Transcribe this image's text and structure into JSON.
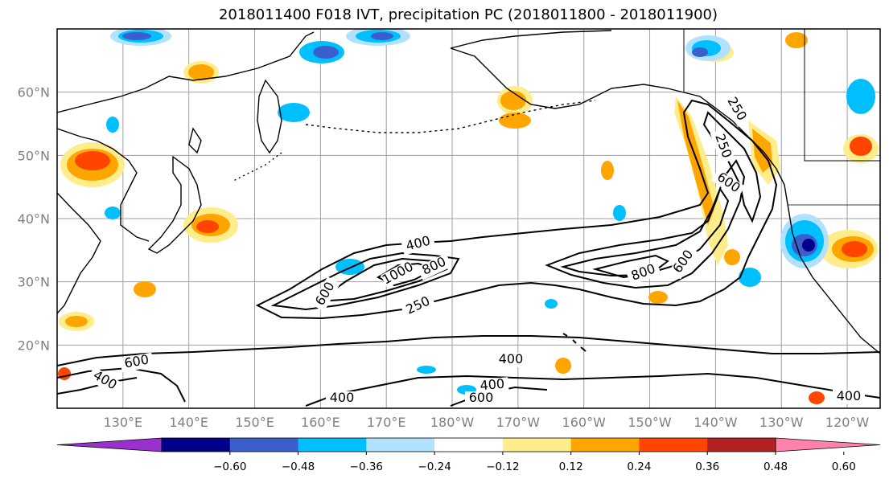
{
  "title": "2018011400 F018 IVT, precipitation PC (2018011800 - 2018011900)",
  "map": {
    "lat_labels": [
      "20°N",
      "30°N",
      "40°N",
      "50°N",
      "60°N"
    ],
    "lat_values": [
      20,
      30,
      40,
      50,
      60
    ],
    "lon_labels": [
      "130°E",
      "140°E",
      "150°E",
      "160°E",
      "170°E",
      "180°W",
      "170°W",
      "160°W",
      "150°W",
      "140°W",
      "130°W",
      "120°W"
    ],
    "lon_values": [
      130,
      140,
      150,
      160,
      170,
      180,
      190,
      200,
      210,
      220,
      230,
      240
    ],
    "extent": {
      "lon_min": 120,
      "lon_max": 245,
      "lat_min": 10,
      "lat_max": 70
    },
    "ivt_contour_labels": [
      "400",
      "1000",
      "800",
      "600",
      "250",
      "800",
      "600",
      "250",
      "400",
      "600",
      "250",
      "400",
      "600",
      "400",
      "600",
      "400",
      "400"
    ]
  },
  "colorbar": {
    "ticks": [
      "−0.60",
      "−0.48",
      "−0.36",
      "−0.24",
      "−0.12",
      "0.12",
      "0.24",
      "0.36",
      "0.48",
      "0.60"
    ],
    "colors": [
      "#9932CC",
      "#00008B",
      "#3A5FCD",
      "#00BFFF",
      "#B0E2FF",
      "#FFFFFF",
      "#FFEC8B",
      "#FFA500",
      "#FF4500",
      "#B22222",
      "#FF82AB"
    ]
  }
}
